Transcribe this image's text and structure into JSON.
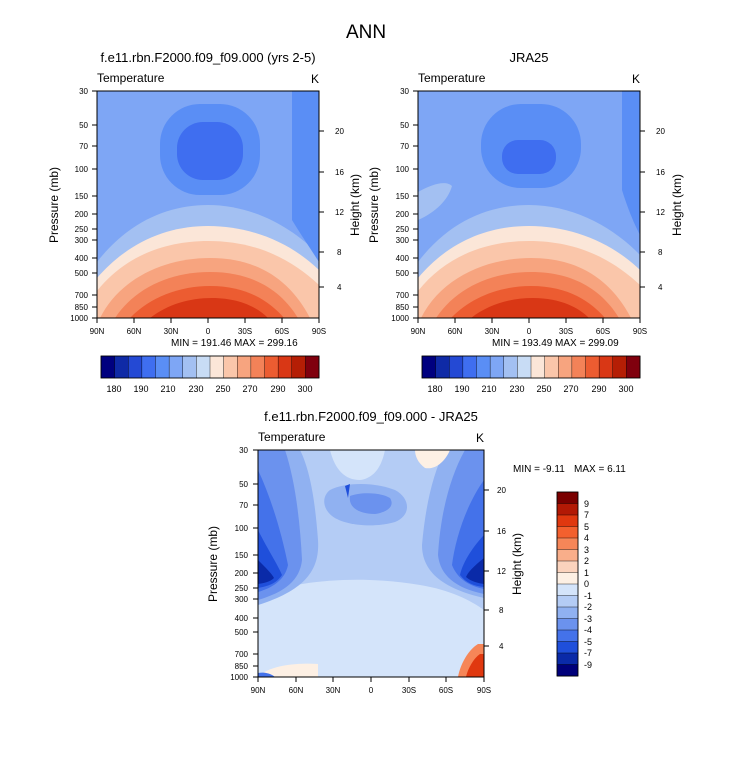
{
  "figure": {
    "main_title": "ANN"
  },
  "chart_data": [
    {
      "type": "heatmap",
      "id": "panel1",
      "title": "f.e11.rbn.F2000.f09_f09.000 (yrs 2-5)",
      "left_label": "Temperature",
      "right_label": "K",
      "xlabel": "",
      "ylabel": "Pressure (mb)",
      "ylabel_right": "Height (km)",
      "x_ticks": [
        "90N",
        "60N",
        "30N",
        "0",
        "30S",
        "60S",
        "90S"
      ],
      "x_values": [
        90,
        60,
        30,
        0,
        -30,
        -60,
        -90
      ],
      "y_ticks": [
        30,
        50,
        70,
        100,
        150,
        200,
        250,
        300,
        400,
        500,
        700,
        850,
        1000
      ],
      "y_right_ticks": [
        20,
        16,
        12,
        8,
        4
      ],
      "ylim": [
        1000,
        30
      ],
      "min_text": "MIN = 191.46",
      "max_text": "MAX = 299.16",
      "min": 191.46,
      "max": 299.16,
      "colorbar_labels": [
        "180",
        "190",
        "210",
        "230",
        "250",
        "270",
        "290",
        "300"
      ]
    },
    {
      "type": "heatmap",
      "id": "panel2",
      "title": "JRA25",
      "left_label": "Temperature",
      "right_label": "K",
      "xlabel": "",
      "ylabel": "Pressure (mb)",
      "ylabel_right": "Height (km)",
      "x_ticks": [
        "90N",
        "60N",
        "30N",
        "0",
        "30S",
        "60S",
        "90S"
      ],
      "x_values": [
        90,
        60,
        30,
        0,
        -30,
        -60,
        -90
      ],
      "y_ticks": [
        30,
        50,
        70,
        100,
        150,
        200,
        250,
        300,
        400,
        500,
        700,
        850,
        1000
      ],
      "y_right_ticks": [
        20,
        16,
        12,
        8,
        4
      ],
      "ylim": [
        1000,
        30
      ],
      "min_text": "MIN = 193.49",
      "max_text": "MAX = 299.09",
      "min": 193.49,
      "max": 299.09,
      "colorbar_labels": [
        "180",
        "190",
        "210",
        "230",
        "250",
        "270",
        "290",
        "300"
      ]
    },
    {
      "type": "heatmap",
      "id": "panel3",
      "title": "f.e11.rbn.F2000.f09_f09.000 - JRA25",
      "left_label": "Temperature",
      "right_label": "K",
      "xlabel": "",
      "ylabel": "Pressure (mb)",
      "ylabel_right": "Height (km)",
      "x_ticks": [
        "90N",
        "60N",
        "30N",
        "0",
        "30S",
        "60S",
        "90S"
      ],
      "x_values": [
        90,
        60,
        30,
        0,
        -30,
        -60,
        -90
      ],
      "y_ticks": [
        30,
        50,
        70,
        100,
        150,
        200,
        250,
        300,
        400,
        500,
        700,
        850,
        1000
      ],
      "y_right_ticks": [
        20,
        16,
        12,
        8,
        4
      ],
      "ylim": [
        1000,
        30
      ],
      "min_text": "MIN =  -9.11",
      "max_text": "MAX =   6.11",
      "min": -9.11,
      "max": 6.11,
      "colorbar_labels": [
        "9",
        "7",
        "5",
        "4",
        "3",
        "2",
        "1",
        "0",
        "-1",
        "-2",
        "-3",
        "-4",
        "-5",
        "-7",
        "-9"
      ]
    }
  ],
  "colors": {
    "temp_scale": [
      "#00007f",
      "#0f2aa6",
      "#2449d4",
      "#3f6ef0",
      "#5a8ef5",
      "#7ea6f5",
      "#a3c0f2",
      "#c8dcf5",
      "#fbe6d8",
      "#fac6aa",
      "#f7a47f",
      "#f38258",
      "#ec5c31",
      "#d93715",
      "#b51e05",
      "#80000e"
    ],
    "diff_scale": [
      "#7a0000",
      "#b21905",
      "#e0380f",
      "#f3602e",
      "#f68658",
      "#f9ae8a",
      "#fbd3bd",
      "#fdf0e4",
      "#d4e4fa",
      "#b4ccf5",
      "#90b1f1",
      "#6b92ee",
      "#4472ea",
      "#1f4fdb",
      "#0a2aa8",
      "#00007a"
    ]
  }
}
